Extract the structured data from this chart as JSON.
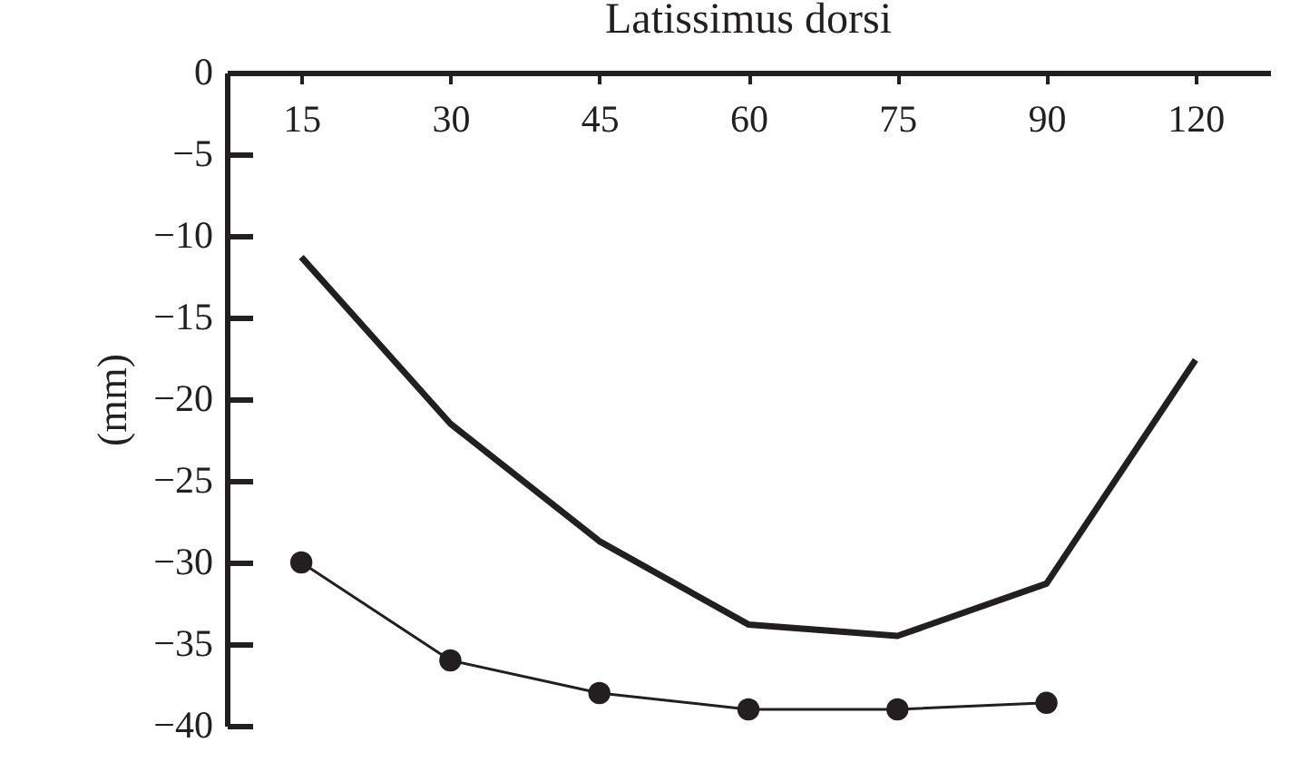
{
  "chart_data": {
    "type": "line",
    "title": "Latissimus dorsi",
    "ylabel": "(mm)",
    "categories": [
      "15",
      "30",
      "45",
      "60",
      "75",
      "90",
      "120"
    ],
    "ylim": [
      -40,
      0
    ],
    "yticks": [
      0,
      -5,
      -10,
      -15,
      -20,
      -25,
      -30,
      -35,
      -40
    ],
    "series": [
      {
        "color": "#231f20",
        "values": [
          -11.3,
          -21.5,
          -28.7,
          -33.8,
          -34.5,
          -31.3,
          -17.6
        ],
        "marker": "none"
      },
      {
        "color": "#231f20",
        "values": [
          -30,
          -36,
          -38,
          -39,
          -39,
          -38.6,
          null
        ],
        "marker": "circle"
      }
    ],
    "grid": false
  }
}
